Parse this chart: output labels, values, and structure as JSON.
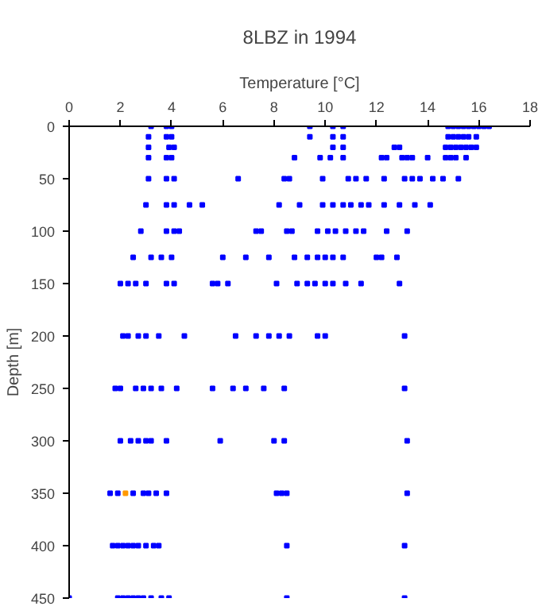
{
  "chart_data": {
    "type": "scatter",
    "title": "8LBZ in 1994",
    "xlabel": "Temperature [°C]",
    "ylabel": "Depth [m]",
    "xlim": [
      0,
      18
    ],
    "xticks": [
      0,
      2,
      4,
      6,
      8,
      10,
      12,
      14,
      16,
      18
    ],
    "ylim": [
      450,
      0
    ],
    "yticks": [
      0,
      50,
      100,
      150,
      200,
      250,
      300,
      350,
      400,
      450
    ],
    "grid": false,
    "marker": "square",
    "series": [
      {
        "color": "#0000ff",
        "x": [
          3.2,
          3.8,
          4.0,
          9.4,
          10.3,
          10.7,
          14.8,
          15.0,
          15.2,
          15.4,
          15.6,
          15.8,
          16.0,
          16.2,
          16.4,
          3.1,
          3.8,
          4.0,
          9.4,
          10.3,
          10.7,
          14.8,
          15.0,
          15.2,
          15.4,
          15.6,
          15.9,
          3.1,
          3.9,
          4.1,
          10.3,
          10.7,
          12.7,
          12.9,
          14.7,
          14.9,
          15.1,
          15.3,
          15.5,
          15.7,
          15.9,
          3.1,
          3.8,
          4.0,
          8.8,
          9.8,
          10.2,
          10.7,
          12.2,
          12.4,
          13.0,
          13.2,
          13.4,
          14.0,
          14.7,
          14.9,
          15.1,
          15.5,
          3.1,
          3.8,
          4.1,
          6.6,
          8.4,
          8.6,
          9.9,
          10.9,
          11.2,
          11.6,
          12.3,
          13.1,
          13.4,
          13.7,
          14.2,
          14.6,
          15.2,
          3.0,
          3.8,
          4.1,
          4.7,
          5.2,
          8.2,
          9.0,
          9.9,
          10.3,
          10.7,
          11.0,
          11.4,
          11.7,
          12.3,
          12.9,
          13.5,
          14.1,
          2.8,
          3.8,
          4.1,
          4.3,
          7.3,
          7.5,
          8.5,
          8.7,
          9.7,
          10.1,
          10.4,
          10.8,
          11.2,
          11.5,
          12.4,
          13.2,
          2.5,
          3.2,
          3.6,
          4.0,
          6.0,
          6.9,
          7.8,
          8.8,
          9.3,
          9.7,
          10.0,
          10.3,
          10.7,
          12.0,
          12.2,
          12.8,
          2.0,
          2.3,
          2.6,
          3.0,
          3.8,
          4.1,
          5.6,
          5.8,
          6.2,
          8.1,
          8.9,
          9.3,
          9.6,
          10.0,
          10.3,
          10.8,
          11.4,
          12.9,
          2.1,
          2.3,
          2.7,
          3.0,
          3.5,
          4.5,
          6.5,
          7.3,
          7.8,
          8.2,
          8.6,
          9.7,
          10.0,
          13.1,
          1.8,
          2.0,
          2.6,
          2.9,
          3.2,
          3.6,
          4.2,
          5.6,
          6.4,
          6.9,
          7.6,
          8.4,
          13.1,
          2.0,
          2.4,
          2.7,
          3.0,
          3.2,
          3.8,
          5.9,
          8.0,
          8.4,
          13.2,
          1.6,
          1.9,
          2.5,
          2.9,
          3.1,
          3.4,
          3.8,
          8.1,
          8.3,
          8.5,
          13.2,
          1.7,
          1.9,
          2.1,
          2.3,
          2.5,
          2.7,
          3.0,
          3.3,
          3.5,
          8.5,
          13.1,
          0.0,
          1.9,
          2.1,
          2.3,
          2.5,
          2.7,
          2.9,
          3.2,
          3.6,
          3.9,
          8.5,
          13.1
        ],
        "values": [
          0,
          0,
          0,
          0,
          0,
          0,
          0,
          0,
          0,
          0,
          0,
          0,
          0,
          0,
          0,
          10,
          10,
          10,
          10,
          10,
          10,
          10,
          10,
          10,
          10,
          10,
          10,
          20,
          20,
          20,
          20,
          20,
          20,
          20,
          20,
          20,
          20,
          20,
          20,
          20,
          20,
          30,
          30,
          30,
          30,
          30,
          30,
          30,
          30,
          30,
          30,
          30,
          30,
          30,
          30,
          30,
          30,
          30,
          50,
          50,
          50,
          50,
          50,
          50,
          50,
          50,
          50,
          50,
          50,
          50,
          50,
          50,
          50,
          50,
          50,
          75,
          75,
          75,
          75,
          75,
          75,
          75,
          75,
          75,
          75,
          75,
          75,
          75,
          75,
          75,
          75,
          75,
          100,
          100,
          100,
          100,
          100,
          100,
          100,
          100,
          100,
          100,
          100,
          100,
          100,
          100,
          100,
          100,
          125,
          125,
          125,
          125,
          125,
          125,
          125,
          125,
          125,
          125,
          125,
          125,
          125,
          125,
          125,
          125,
          150,
          150,
          150,
          150,
          150,
          150,
          150,
          150,
          150,
          150,
          150,
          150,
          150,
          150,
          150,
          150,
          150,
          150,
          200,
          200,
          200,
          200,
          200,
          200,
          200,
          200,
          200,
          200,
          200,
          200,
          200,
          200,
          250,
          250,
          250,
          250,
          250,
          250,
          250,
          250,
          250,
          250,
          250,
          250,
          250,
          300,
          300,
          300,
          300,
          300,
          300,
          300,
          300,
          300,
          300,
          350,
          350,
          350,
          350,
          350,
          350,
          350,
          350,
          350,
          350,
          350,
          400,
          400,
          400,
          400,
          400,
          400,
          400,
          400,
          400,
          400,
          400,
          450,
          450,
          450,
          450,
          450,
          450,
          450,
          450,
          450,
          450,
          450,
          450
        ]
      },
      {
        "color": "#ff9900",
        "x": [
          2.2
        ],
        "values": [
          350
        ]
      }
    ]
  }
}
